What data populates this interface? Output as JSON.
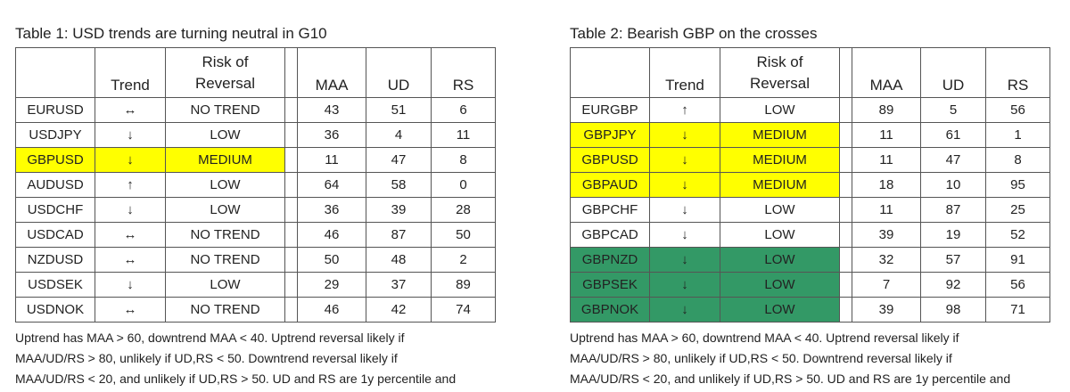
{
  "tables": [
    {
      "title": "Table 1: USD trends are turning neutral in G10",
      "columns": [
        "Trend",
        "Risk of Reversal",
        "MAA",
        "UD",
        "RS"
      ],
      "rows": [
        {
          "cells": [
            "EURUSD",
            "↔",
            "NO TREND",
            43,
            51,
            6
          ]
        },
        {
          "cells": [
            "USDJPY",
            "↓",
            "LOW",
            36,
            4,
            11
          ]
        },
        {
          "cells": [
            "GBPUSD",
            "↓",
            "MEDIUM",
            11,
            47,
            8
          ],
          "highlight": "#ffff00"
        },
        {
          "cells": [
            "AUDUSD",
            "↑",
            "LOW",
            64,
            58,
            0
          ]
        },
        {
          "cells": [
            "USDCHF",
            "↓",
            "LOW",
            36,
            39,
            28
          ]
        },
        {
          "cells": [
            "USDCAD",
            "↔",
            "NO TREND",
            46,
            87,
            50
          ]
        },
        {
          "cells": [
            "NZDUSD",
            "↔",
            "NO TREND",
            50,
            48,
            2
          ]
        },
        {
          "cells": [
            "USDSEK",
            "↓",
            "LOW",
            29,
            37,
            89
          ]
        },
        {
          "cells": [
            "USDNOK",
            "↔",
            "NO TREND",
            46,
            42,
            74
          ]
        }
      ],
      "notes": [
        "Uptrend has MAA > 60, downtrend MAA < 40. Uptrend reversal likely if",
        "MAA/UD/RS > 80, unlikely if UD,RS < 50. Downtrend reversal likely if",
        "MAA/UD/RS < 20, and unlikely if UD,RS > 50. UD and RS are 1y percentile and"
      ]
    },
    {
      "title": "Table 2: Bearish GBP on the crosses",
      "columns": [
        "Trend",
        "Risk of Reversal",
        "MAA",
        "UD",
        "RS"
      ],
      "rows": [
        {
          "cells": [
            "EURGBP",
            "↑",
            "LOW",
            89,
            5,
            56
          ]
        },
        {
          "cells": [
            "GBPJPY",
            "↓",
            "MEDIUM",
            11,
            61,
            1
          ],
          "highlight": "#ffff00"
        },
        {
          "cells": [
            "GBPUSD",
            "↓",
            "MEDIUM",
            11,
            47,
            8
          ],
          "highlight": "#ffff00"
        },
        {
          "cells": [
            "GBPAUD",
            "↓",
            "MEDIUM",
            18,
            10,
            95
          ],
          "highlight": "#ffff00"
        },
        {
          "cells": [
            "GBPCHF",
            "↓",
            "LOW",
            11,
            87,
            25
          ]
        },
        {
          "cells": [
            "GBPCAD",
            "↓",
            "LOW",
            39,
            19,
            52
          ]
        },
        {
          "cells": [
            "GBPNZD",
            "↓",
            "LOW",
            32,
            57,
            91
          ],
          "highlight": "#339966"
        },
        {
          "cells": [
            "GBPSEK",
            "↓",
            "LOW",
            7,
            92,
            56
          ],
          "highlight": "#339966"
        },
        {
          "cells": [
            "GBPNOK",
            "↓",
            "LOW",
            39,
            98,
            71
          ],
          "highlight": "#339966"
        }
      ],
      "notes": [
        "Uptrend has MAA > 60, downtrend MAA < 40. Uptrend reversal likely if",
        "MAA/UD/RS > 80, unlikely if UD,RS < 50. Downtrend reversal likely if",
        "MAA/UD/RS < 20, and unlikely if UD,RS > 50. UD and RS are 1y percentile and"
      ]
    }
  ]
}
